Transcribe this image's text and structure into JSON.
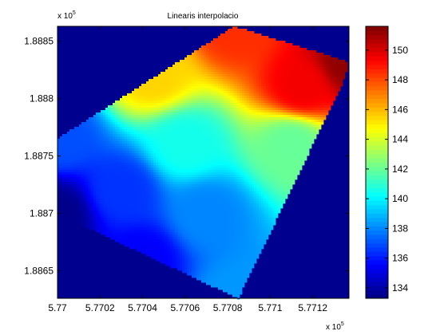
{
  "chart_data": {
    "type": "heatmap",
    "title": "Linearis interpolacio",
    "x_exponent_label": "x 10",
    "x_exponent_power": "5",
    "y_exponent_label": "x 10",
    "y_exponent_power": "5",
    "xlim": [
      577000,
      577137
    ],
    "ylim": [
      188626,
      188863
    ],
    "x_ticks": [
      {
        "value": 577000,
        "label": "5.77"
      },
      {
        "value": 577020,
        "label": "5.7702"
      },
      {
        "value": 577040,
        "label": "5.7704"
      },
      {
        "value": 577060,
        "label": "5.7706"
      },
      {
        "value": 577080,
        "label": "5.7708"
      },
      {
        "value": 577100,
        "label": "5.771"
      },
      {
        "value": 577120,
        "label": "5.7712"
      }
    ],
    "y_ticks": [
      {
        "value": 188650,
        "label": "1.8865"
      },
      {
        "value": 188700,
        "label": "1.887"
      },
      {
        "value": 188750,
        "label": "1.8875"
      },
      {
        "value": 188800,
        "label": "1.888"
      },
      {
        "value": 188850,
        "label": "1.8885"
      }
    ],
    "background_color": "#00008f",
    "colorbar": {
      "clim": [
        133.3,
        151.6
      ],
      "ticks": [
        {
          "value": 134,
          "label": "134"
        },
        {
          "value": 136,
          "label": "136"
        },
        {
          "value": 138,
          "label": "138"
        },
        {
          "value": 140,
          "label": "140"
        },
        {
          "value": 142,
          "label": "142"
        },
        {
          "value": 144,
          "label": "144"
        },
        {
          "value": 146,
          "label": "146"
        },
        {
          "value": 148,
          "label": "148"
        },
        {
          "value": 150,
          "label": "150"
        }
      ]
    },
    "region_polygon": [
      [
        577000,
        188765
      ],
      [
        577083,
        188863
      ],
      [
        577137,
        188832
      ],
      [
        577134,
        188814
      ],
      [
        577085,
        188626
      ],
      [
        577000,
        188700
      ]
    ],
    "control_points": [
      {
        "x": 577000,
        "y": 188700,
        "value": 133.5
      },
      {
        "x": 577000,
        "y": 188765,
        "value": 137.0
      },
      {
        "x": 577083,
        "y": 188863,
        "value": 148.5
      },
      {
        "x": 577137,
        "y": 188832,
        "value": 151.3
      },
      {
        "x": 577085,
        "y": 188626,
        "value": 138.3
      },
      {
        "x": 577045,
        "y": 188820,
        "value": 145.5
      },
      {
        "x": 577070,
        "y": 188700,
        "value": 138.0
      },
      {
        "x": 577030,
        "y": 188720,
        "value": 136.5
      },
      {
        "x": 577110,
        "y": 188760,
        "value": 142.0
      },
      {
        "x": 577115,
        "y": 188810,
        "value": 149.5
      },
      {
        "x": 577060,
        "y": 188760,
        "value": 140.5
      },
      {
        "x": 577040,
        "y": 188660,
        "value": 135.5
      }
    ]
  }
}
